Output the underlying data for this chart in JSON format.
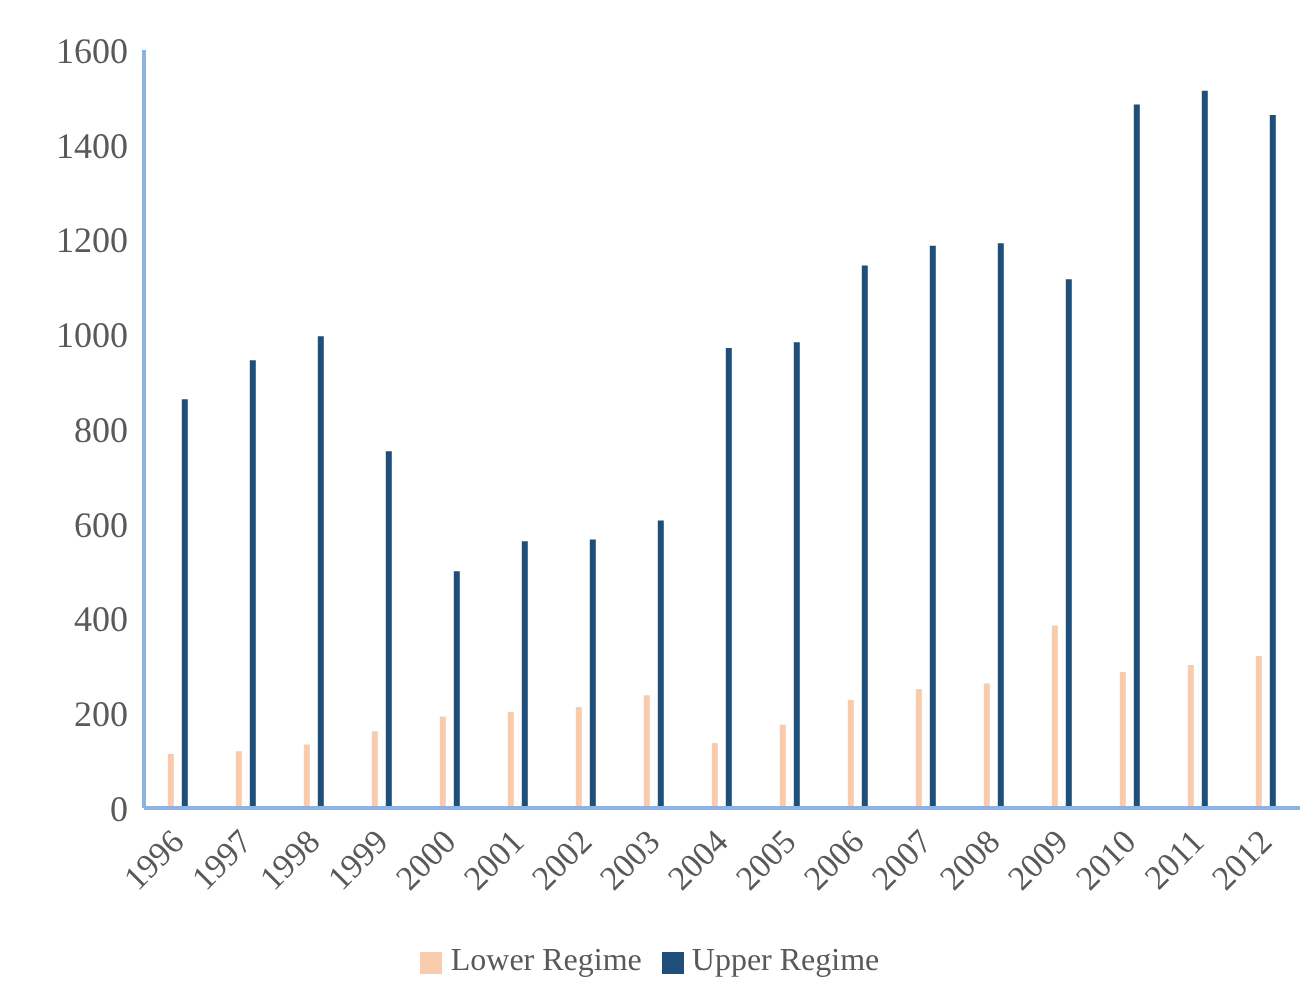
{
  "chart_data": {
    "type": "bar",
    "categories": [
      "1996",
      "1997",
      "1998",
      "1999",
      "2000",
      "2001",
      "2002",
      "2003",
      "2004",
      "2005",
      "2006",
      "2007",
      "2008",
      "2009",
      "2010",
      "2011",
      "2012"
    ],
    "series": [
      {
        "name": "Lower Regime",
        "color": "#f8cbad",
        "values": [
          114,
          120,
          134,
          162,
          193,
          203,
          213,
          238,
          137,
          176,
          228,
          251,
          263,
          385,
          287,
          302,
          321
        ]
      },
      {
        "name": "Upper Regime",
        "color": "#1f4e79",
        "values": [
          863,
          945,
          996,
          753,
          500,
          563,
          567,
          607,
          971,
          983,
          1145,
          1187,
          1192,
          1116,
          1485,
          1514,
          1463
        ]
      }
    ],
    "ylim": [
      0,
      1600
    ],
    "yticks": [
      0,
      200,
      400,
      600,
      800,
      1000,
      1200,
      1400,
      1600
    ],
    "grid": false,
    "legend": "bottom"
  }
}
